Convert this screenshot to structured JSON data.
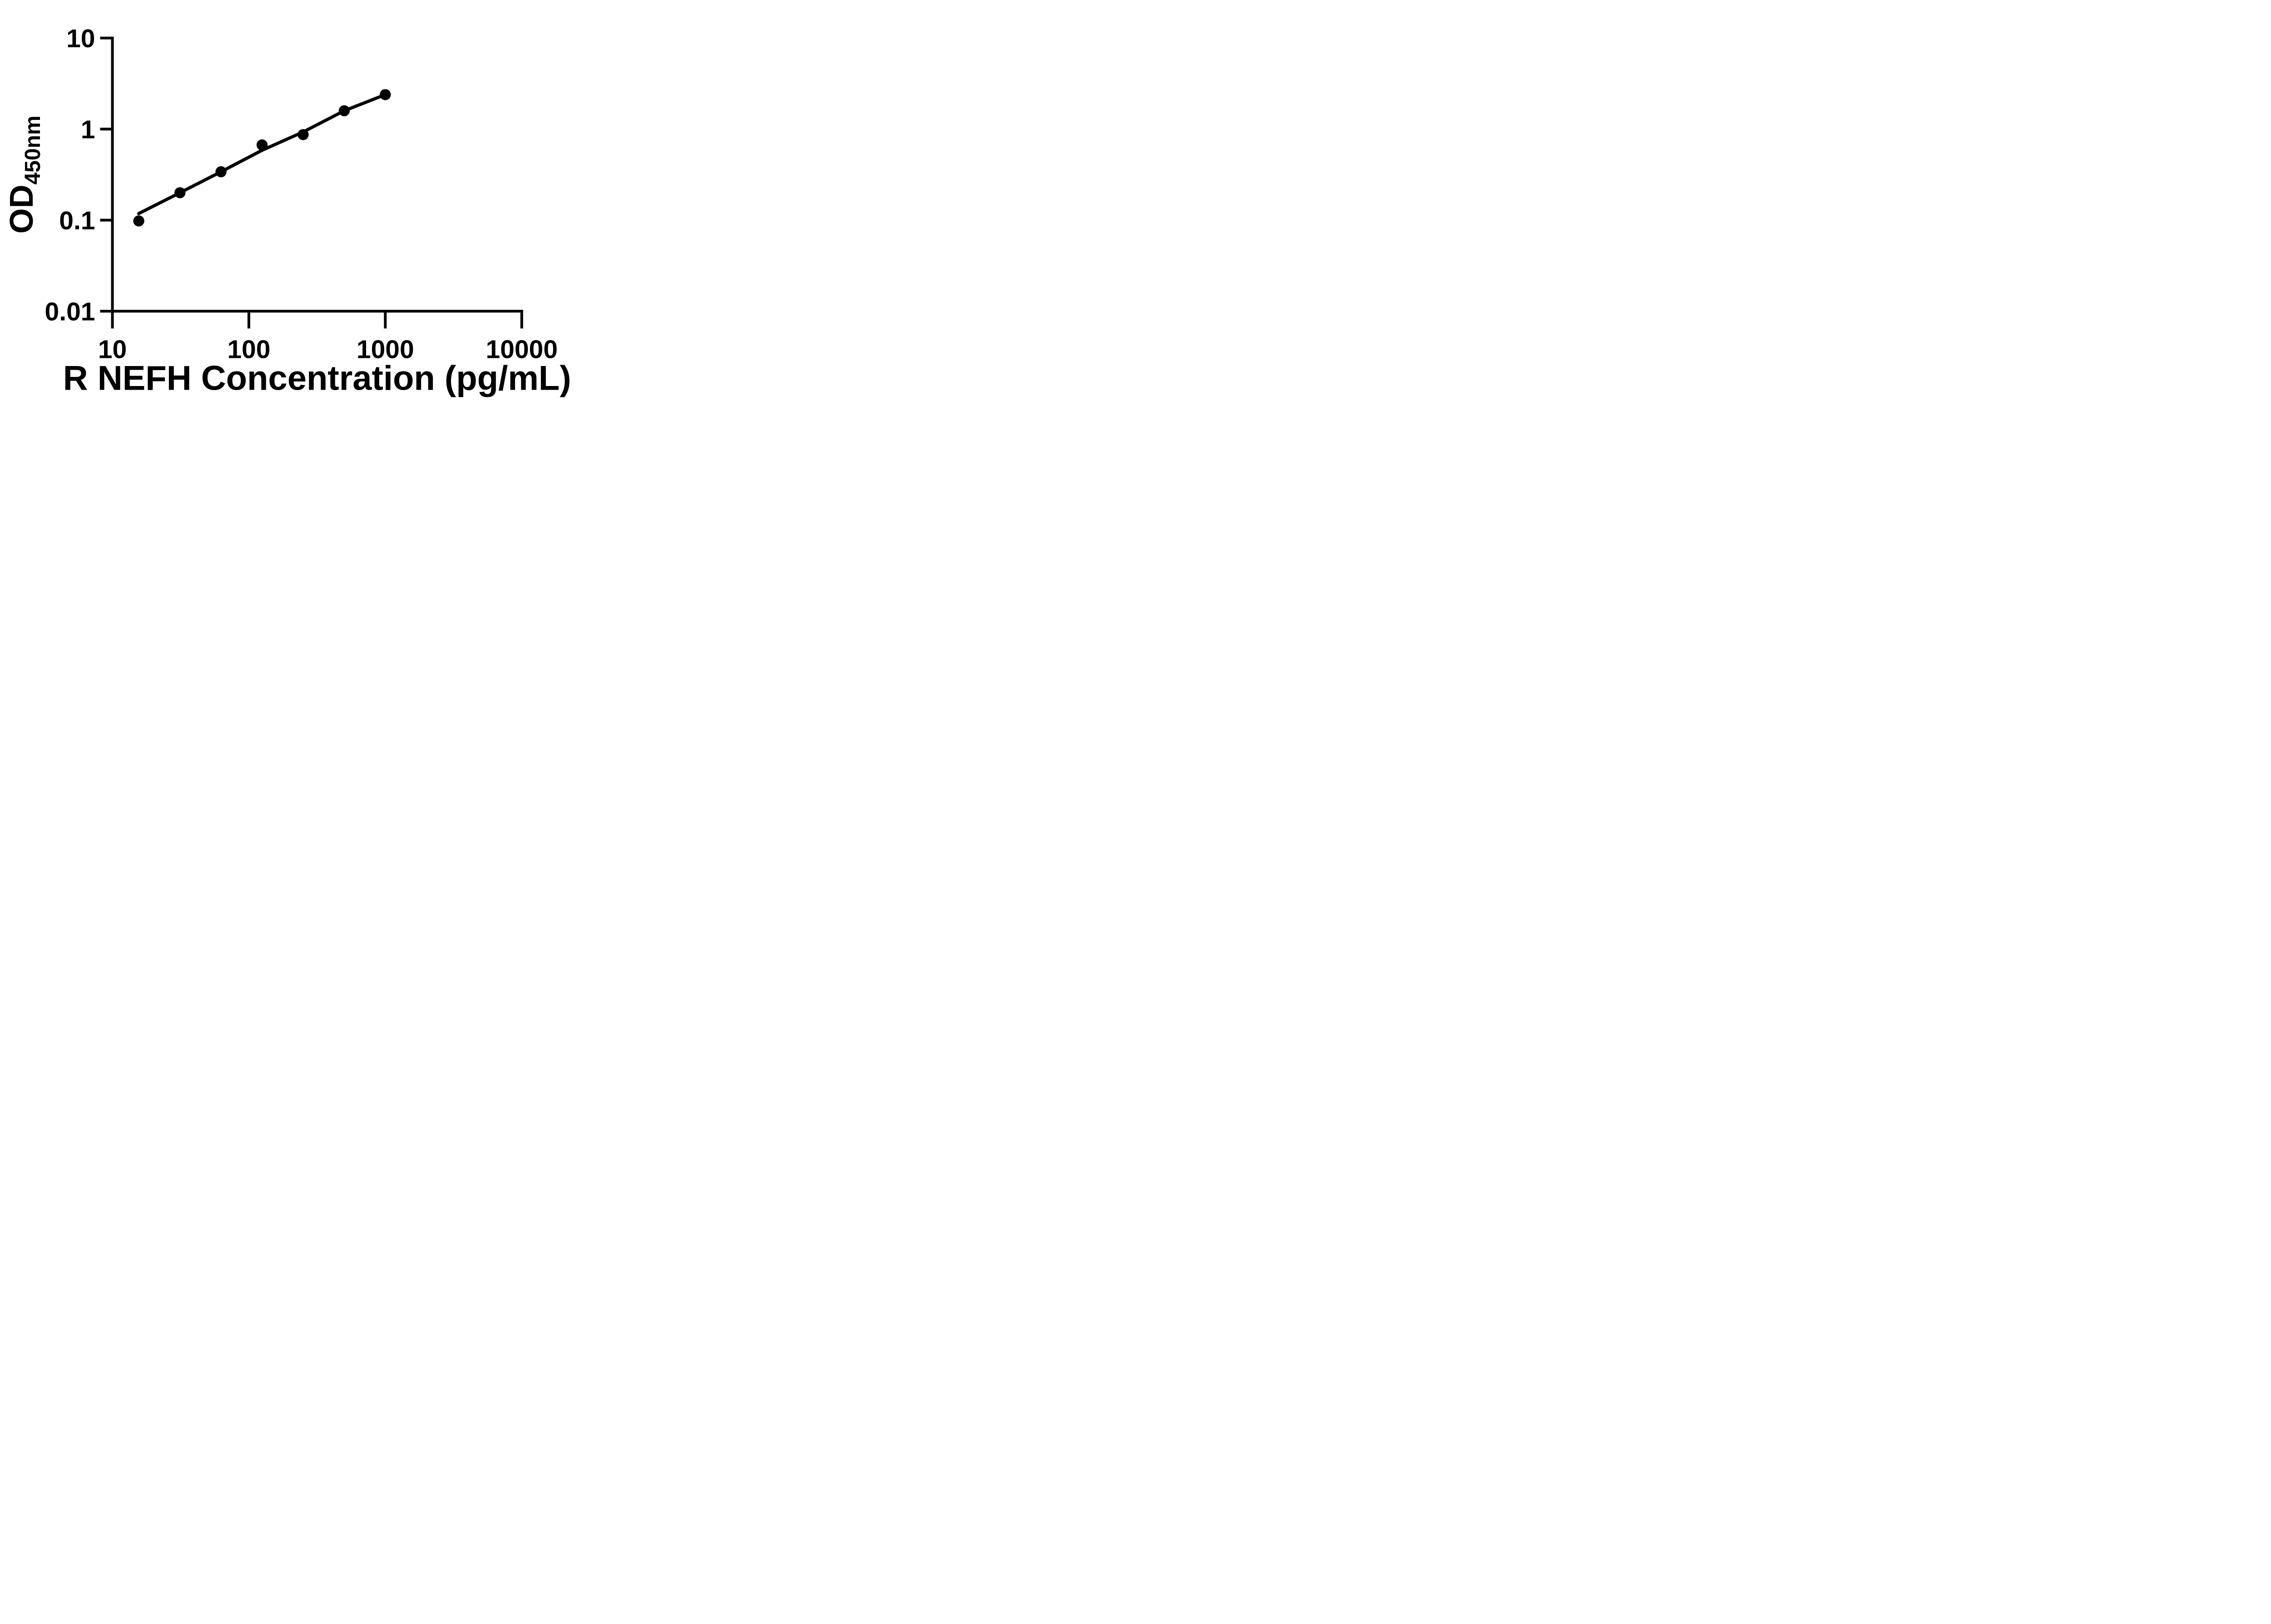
{
  "figure": {
    "background": "#ffffff",
    "ink": "#000000"
  },
  "chart_data": {
    "type": "scatter",
    "title": "",
    "legend": "none",
    "grid": false,
    "x_axis": {
      "label": "R NEFH Concentration (pg/mL)",
      "scale": "log",
      "min": 10,
      "max": 10000,
      "ticks": [
        {
          "value": 10,
          "label": "10"
        },
        {
          "value": 100,
          "label": "100"
        },
        {
          "value": 1000,
          "label": "1000"
        },
        {
          "value": 10000,
          "label": "10000"
        }
      ]
    },
    "y_axis": {
      "label_base": "OD",
      "label_subscript": "450nm",
      "scale": "log",
      "min": 0.01,
      "max": 10,
      "ticks": [
        {
          "value": 10,
          "label": "10"
        },
        {
          "value": 1,
          "label": "1"
        },
        {
          "value": 0.1,
          "label": "0.1"
        },
        {
          "value": 0.01,
          "label": "0.01"
        }
      ]
    },
    "series": [
      {
        "name": "standard-curve-points",
        "marker": "filled-circle",
        "color": "#000000",
        "x": [
          15.6,
          31.25,
          62.5,
          125,
          250,
          500,
          1000
        ],
        "y": [
          0.098,
          0.2,
          0.34,
          0.67,
          0.87,
          1.59,
          2.39
        ]
      }
    ],
    "fit_line": {
      "name": "standard-curve-fit-line",
      "color": "#000000",
      "x": [
        15.6,
        31.25,
        62.5,
        125,
        250,
        500,
        1000
      ],
      "y": [
        0.118,
        0.2,
        0.34,
        0.585,
        0.93,
        1.59,
        2.39
      ]
    }
  }
}
